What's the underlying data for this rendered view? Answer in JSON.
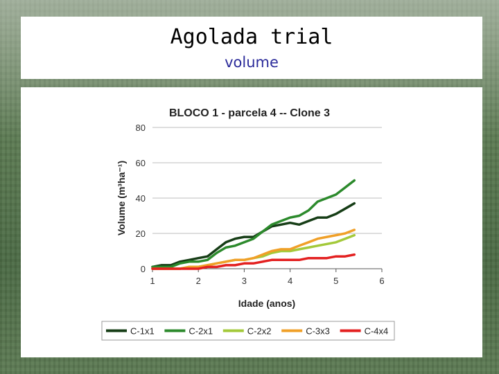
{
  "slide": {
    "title": "Agolada trial",
    "subtitle": "volume"
  },
  "chart_data": {
    "type": "line",
    "title": "BLOCO 1 -  parcela 4 -- Clone 3",
    "xlabel": "Idade (anos)",
    "ylabel": "Volume (m³ha⁻¹)",
    "xlim": [
      1,
      6
    ],
    "ylim": [
      0,
      80
    ],
    "xticks": [
      1,
      2,
      3,
      4,
      5,
      6
    ],
    "yticks": [
      0,
      20,
      40,
      60,
      80
    ],
    "grid": "horizontal",
    "legend": "bottom",
    "series": [
      {
        "name": "C-1x1",
        "color": "#163d16",
        "x": [
          1.0,
          1.2,
          1.4,
          1.6,
          1.8,
          2.0,
          2.2,
          2.4,
          2.6,
          2.8,
          3.0,
          3.2,
          3.4,
          3.6,
          3.8,
          4.0,
          4.2,
          4.4,
          4.6,
          4.8,
          5.0,
          5.2,
          5.4
        ],
        "y": [
          1,
          2,
          2,
          4,
          5,
          6,
          7,
          11,
          15,
          17,
          18,
          18,
          21,
          24,
          25,
          26,
          25,
          27,
          29,
          29,
          31,
          34,
          37
        ]
      },
      {
        "name": "C-2x1",
        "color": "#2c8a2c",
        "x": [
          1.0,
          1.2,
          1.4,
          1.6,
          1.8,
          2.0,
          2.2,
          2.4,
          2.6,
          2.8,
          3.0,
          3.2,
          3.4,
          3.6,
          3.8,
          4.0,
          4.2,
          4.4,
          4.6,
          4.8,
          5.0,
          5.2,
          5.4
        ],
        "y": [
          1,
          1,
          1,
          3,
          4,
          4,
          5,
          9,
          12,
          13,
          15,
          17,
          21,
          25,
          27,
          29,
          30,
          33,
          38,
          40,
          42,
          46,
          50
        ]
      },
      {
        "name": "C-2x2",
        "color": "#a3c93a",
        "x": [
          1.0,
          1.2,
          1.4,
          1.6,
          1.8,
          2.0,
          2.2,
          2.4,
          2.6,
          2.8,
          3.0,
          3.2,
          3.4,
          3.6,
          3.8,
          4.0,
          4.2,
          4.4,
          4.6,
          4.8,
          5.0,
          5.2,
          5.4
        ],
        "y": [
          0,
          0,
          0,
          0,
          1,
          1,
          2,
          3,
          4,
          5,
          5,
          6,
          7,
          9,
          10,
          10,
          11,
          12,
          13,
          14,
          15,
          17,
          19
        ]
      },
      {
        "name": "C-3x3",
        "color": "#f0a028",
        "x": [
          1.0,
          1.2,
          1.4,
          1.6,
          1.8,
          2.0,
          2.2,
          2.4,
          2.6,
          2.8,
          3.0,
          3.2,
          3.4,
          3.6,
          3.8,
          4.0,
          4.2,
          4.4,
          4.6,
          4.8,
          5.0,
          5.2,
          5.4
        ],
        "y": [
          0,
          0,
          0,
          0,
          1,
          1,
          2,
          3,
          4,
          5,
          5,
          6,
          8,
          10,
          11,
          11,
          13,
          15,
          17,
          18,
          19,
          20,
          22
        ]
      },
      {
        "name": "C-4x4",
        "color": "#e32020",
        "x": [
          1.0,
          1.2,
          1.4,
          1.6,
          1.8,
          2.0,
          2.2,
          2.4,
          2.6,
          2.8,
          3.0,
          3.2,
          3.4,
          3.6,
          3.8,
          4.0,
          4.2,
          4.4,
          4.6,
          4.8,
          5.0,
          5.2,
          5.4
        ],
        "y": [
          0,
          0,
          0,
          0,
          0,
          0,
          1,
          1,
          2,
          2,
          3,
          3,
          4,
          5,
          5,
          5,
          5,
          6,
          6,
          6,
          7,
          7,
          8
        ]
      }
    ]
  }
}
